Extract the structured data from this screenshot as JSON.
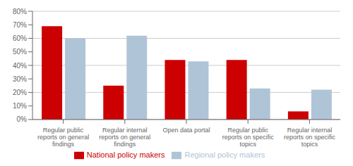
{
  "chart_data": {
    "type": "bar",
    "categories": [
      "Regular public\nreports on general\nfindings",
      "Regular internal\nreports on general\nfindings",
      "Open data portal",
      "Regular public\nreports on specific\ntopics",
      "Regular internal\nreports on specific\ntopics"
    ],
    "series": [
      {
        "name": "National policy makers",
        "color": "#cc0000",
        "values": [
          69,
          25,
          44,
          44,
          6
        ]
      },
      {
        "name": "Regional policy makers",
        "color": "#b0c4d8",
        "values": [
          60,
          62,
          43,
          23,
          22
        ]
      }
    ],
    "ylim": [
      0,
      80
    ],
    "yticks": [
      {
        "value": 0,
        "label": "0%"
      },
      {
        "value": 10,
        "label": "10%"
      },
      {
        "value": 20,
        "label": "20%"
      },
      {
        "value": 30,
        "label": "30%"
      },
      {
        "value": 40,
        "label": "40%"
      },
      {
        "value": 50,
        "label": "50%"
      },
      {
        "value": 60,
        "label": "60%"
      },
      {
        "value": 70,
        "label": "70%"
      },
      {
        "value": 80,
        "label": "80%"
      }
    ],
    "grid": true,
    "legend": "bottom"
  }
}
